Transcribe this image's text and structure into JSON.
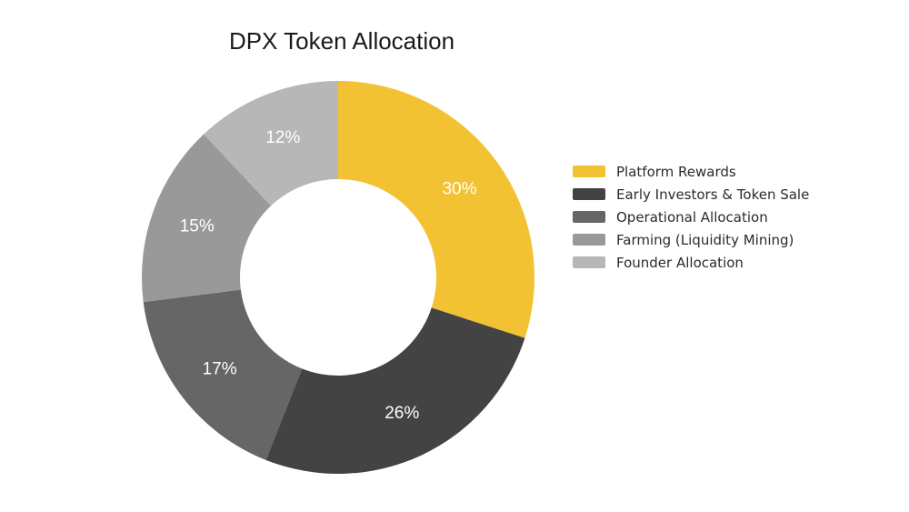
{
  "chart_data": {
    "type": "pie",
    "variant": "donut",
    "title": "DPX Token Allocation",
    "categories": [
      "Platform Rewards",
      "Early Investors & Token Sale",
      "Operational Allocation",
      "Farming (Liquidity Mining)",
      "Founder Allocation"
    ],
    "values": [
      30,
      26,
      17,
      15,
      12
    ],
    "value_labels": [
      "30%",
      "26%",
      "17%",
      "15%",
      "12%"
    ],
    "colors": [
      "#f2c232",
      "#434343",
      "#666666",
      "#999999",
      "#b7b7b7"
    ],
    "legend_position": "right"
  }
}
